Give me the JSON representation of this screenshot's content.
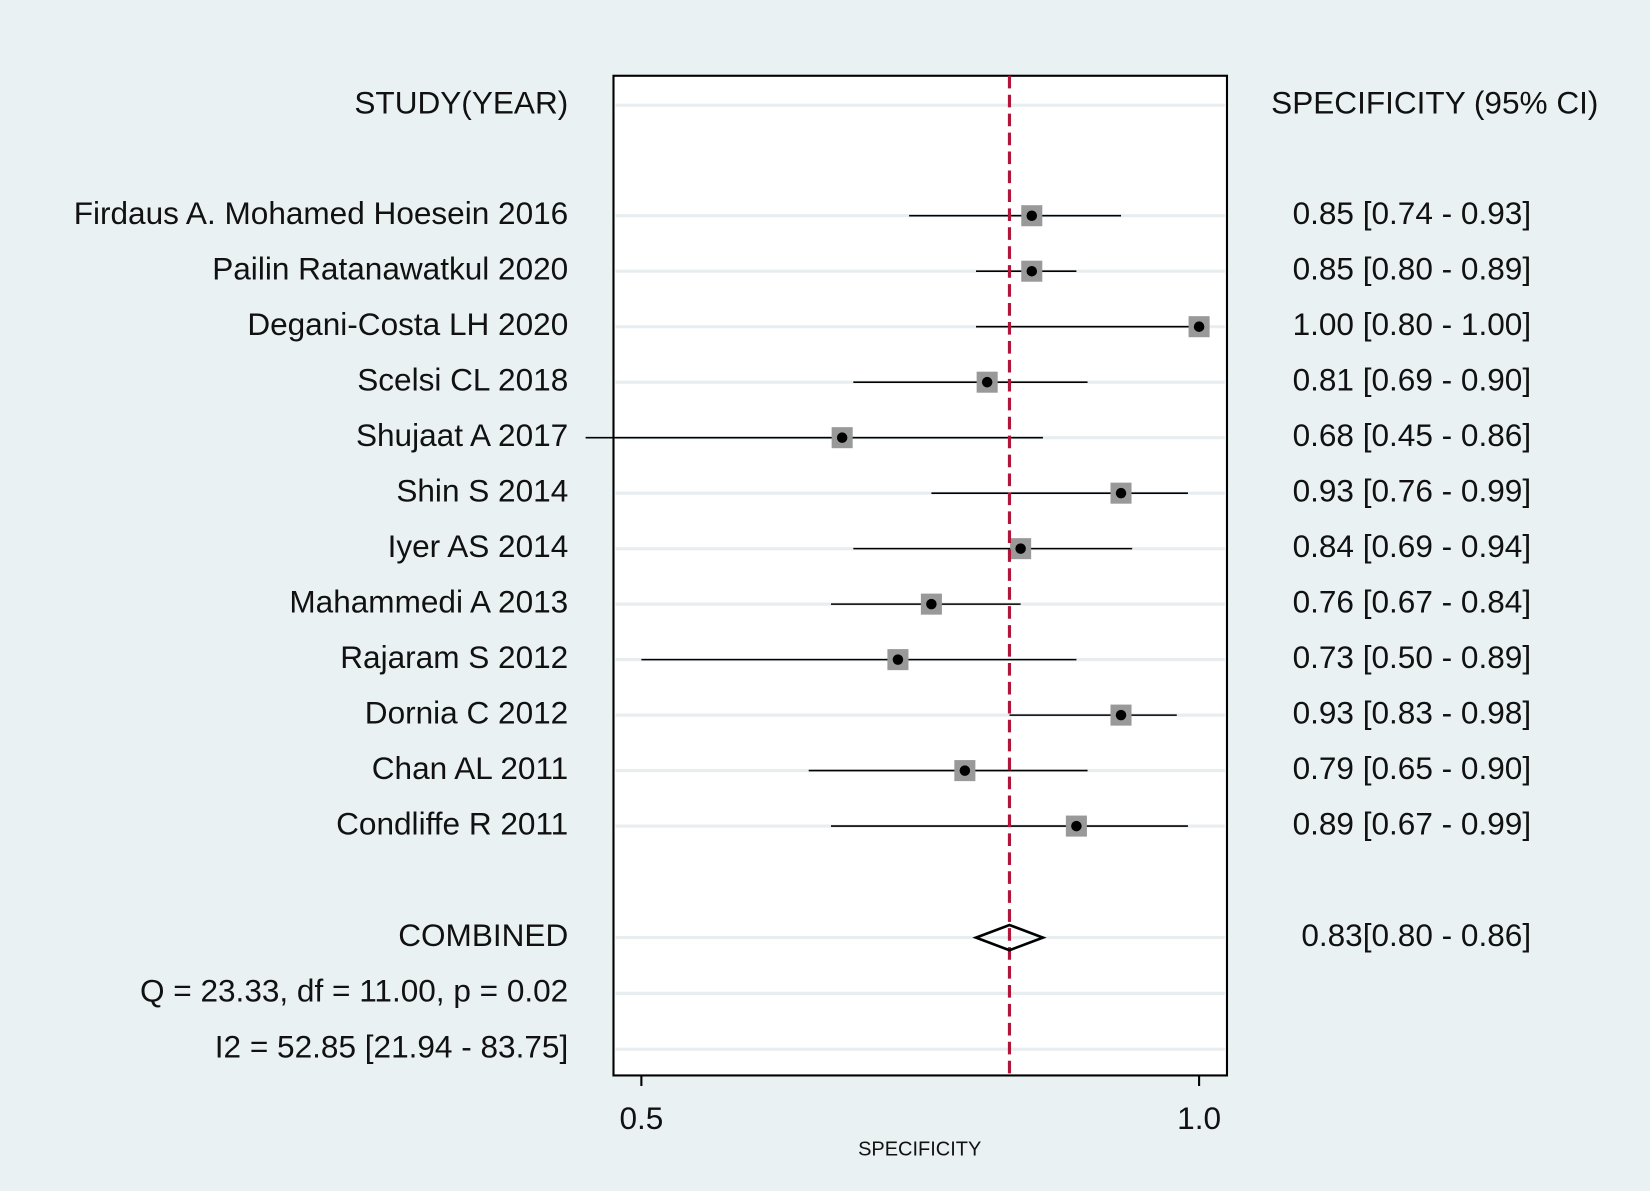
{
  "chart_data": {
    "type": "forest",
    "study_header": "STUDY(YEAR)",
    "estimate_header": "SPECIFICITY (95% CI)",
    "x_label": "SPECIFICITY",
    "categories": [
      "Firdaus A. Mohamed Hoesein 2016",
      "Pailin Ratanawatkul 2020",
      "Degani-Costa LH 2020",
      "Scelsi CL 2018",
      "Shujaat A 2017",
      "Shin S 2014",
      "Iyer AS 2014",
      "Mahammedi A 2013",
      "Rajaram S 2012",
      "Dornia C 2012",
      "Chan AL 2011",
      "Condliffe R 2011"
    ],
    "values": [
      0.85,
      0.85,
      1.0,
      0.81,
      0.68,
      0.93,
      0.84,
      0.76,
      0.73,
      0.93,
      0.79,
      0.89
    ],
    "ci_lower": [
      0.74,
      0.8,
      0.8,
      0.69,
      0.45,
      0.76,
      0.69,
      0.67,
      0.5,
      0.83,
      0.65,
      0.67
    ],
    "ci_upper": [
      0.93,
      0.89,
      1.0,
      0.9,
      0.86,
      0.99,
      0.94,
      0.84,
      0.89,
      0.98,
      0.9,
      0.99
    ],
    "value_labels": [
      "0.85 [0.74 - 0.93]",
      "0.85 [0.80 - 0.89]",
      "1.00 [0.80 - 1.00]",
      "0.81 [0.69 - 0.90]",
      "0.68 [0.45 - 0.86]",
      "0.93 [0.76 - 0.99]",
      "0.84 [0.69 - 0.94]",
      "0.76 [0.67 - 0.84]",
      "0.73 [0.50 - 0.89]",
      "0.93 [0.83 - 0.98]",
      "0.79 [0.65 - 0.90]",
      "0.89 [0.67 - 0.99]"
    ],
    "combined": {
      "label": "COMBINED",
      "value": 0.83,
      "ci_lower": 0.8,
      "ci_upper": 0.86,
      "value_label": "0.83[0.80 - 0.86]"
    },
    "annotations": [
      "Q = 23.33, df = 11.00, p =  0.02",
      "I2 = 52.85 [21.94 - 83.75]"
    ],
    "xlim": [
      0.475,
      1.025
    ],
    "xticks": [
      0.5,
      {
        "value": 1.0,
        "label": "1.0"
      }
    ],
    "marker_color": "#999999",
    "point_color": "#000000",
    "reference_line_color": "#b0153a"
  }
}
